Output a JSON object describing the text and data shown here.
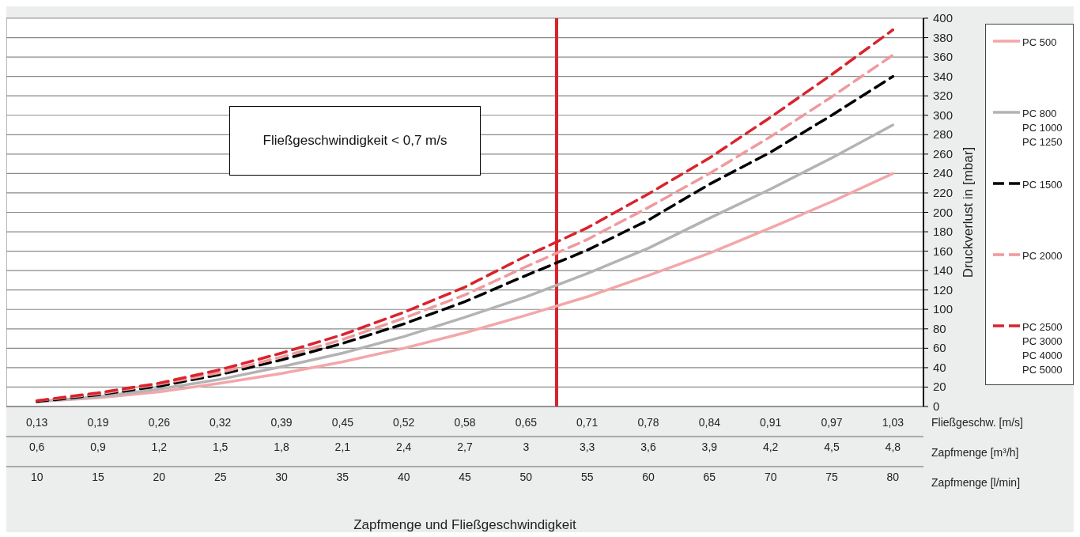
{
  "chart_data": {
    "type": "line",
    "xlabel": "Zapfmenge und Fließgeschwindigkeit",
    "ylabel": "Druckverlust in [mbar]",
    "x": [
      10,
      15,
      20,
      25,
      30,
      35,
      40,
      45,
      50,
      55,
      60,
      65,
      70,
      75,
      80
    ],
    "xlim": [
      7.5,
      82.5
    ],
    "xticks": [
      10,
      15,
      20,
      25,
      30,
      35,
      40,
      45,
      50,
      55,
      60,
      65,
      70,
      75,
      80
    ],
    "x2lim": [
      0.45,
      4.95
    ],
    "x2ticks": [
      {
        "value": 0.6,
        "label": "0,6"
      },
      {
        "value": 0.9,
        "label": "0,9"
      },
      {
        "value": 1.2,
        "label": "1,2"
      },
      {
        "value": 1.5,
        "label": "1,5"
      },
      {
        "value": 1.8,
        "label": "1,8"
      },
      {
        "value": 2.1,
        "label": "2,1"
      },
      {
        "value": 2.4,
        "label": "2,4"
      },
      {
        "value": 2.7,
        "label": "2,7"
      },
      {
        "value": 3,
        "label": "3"
      },
      {
        "value": 3.3,
        "label": "3,3"
      },
      {
        "value": 3.6,
        "label": "3,6"
      },
      {
        "value": 3.9,
        "label": "3,9"
      },
      {
        "value": 4.2,
        "label": "4,2"
      },
      {
        "value": 4.5,
        "label": "4,5"
      },
      {
        "value": 4.8,
        "label": "4,8"
      }
    ],
    "x2label": "Zapfmenge [m³/h]",
    "ylim": [
      0,
      400
    ],
    "yticks": [
      0,
      20,
      40,
      60,
      80,
      100,
      120,
      140,
      160,
      180,
      200,
      220,
      240,
      260,
      280,
      300,
      320,
      340,
      360,
      380,
      400
    ],
    "grid": true,
    "legend": "right",
    "marker": "none",
    "series": [
      {
        "name": "PC 500",
        "color": "#f2a7a9",
        "line_style": "solid",
        "values": [
          5,
          9,
          15,
          24,
          34,
          46,
          60,
          76,
          94,
          113,
          135,
          158,
          184,
          211,
          240
        ]
      },
      {
        "name": "PC 800\nPC 1000\nPC 1250",
        "color": "#b3b3b3",
        "line_style": "solid",
        "values": [
          5,
          10,
          18,
          28,
          41,
          55,
          72,
          92,
          113,
          137,
          163,
          194,
          224,
          256,
          290
        ]
      },
      {
        "name": "PC 1500",
        "color": "#000000",
        "line_style": "dashed",
        "values": [
          5,
          12,
          21,
          33,
          48,
          65,
          85,
          108,
          135,
          161,
          192,
          229,
          262,
          300,
          340
        ]
      },
      {
        "name": "PC 2000",
        "color": "#ef9a9c",
        "line_style": "dashed",
        "values": [
          6,
          13,
          23,
          35,
          51,
          69,
          91,
          115,
          144,
          172,
          205,
          240,
          278,
          319,
          362
        ]
      },
      {
        "name": "PC 2500\nPC 3000\nPC 4000\nPC 5000",
        "color": "#d9232d",
        "line_style": "dashed",
        "values": [
          6,
          14,
          24,
          38,
          55,
          74,
          97,
          123,
          155,
          184,
          219,
          256,
          298,
          342,
          388
        ]
      }
    ],
    "ref_lines": [
      {
        "axis": "x",
        "value": 52.5,
        "color": "#d9232d"
      }
    ],
    "annotations": [
      "Fließgeschwindigkeit < 0,7 m/s",
      "Fließgeschw. [m/s]",
      "Zapfmenge [l/min]",
      "0,13",
      "0,19",
      "0,26",
      "0,32",
      "0,39",
      "0,45",
      "0,52",
      "0,58",
      "0,65",
      "0,71",
      "0,78",
      "0,84",
      "0,91",
      "0,97",
      "1,03"
    ]
  }
}
